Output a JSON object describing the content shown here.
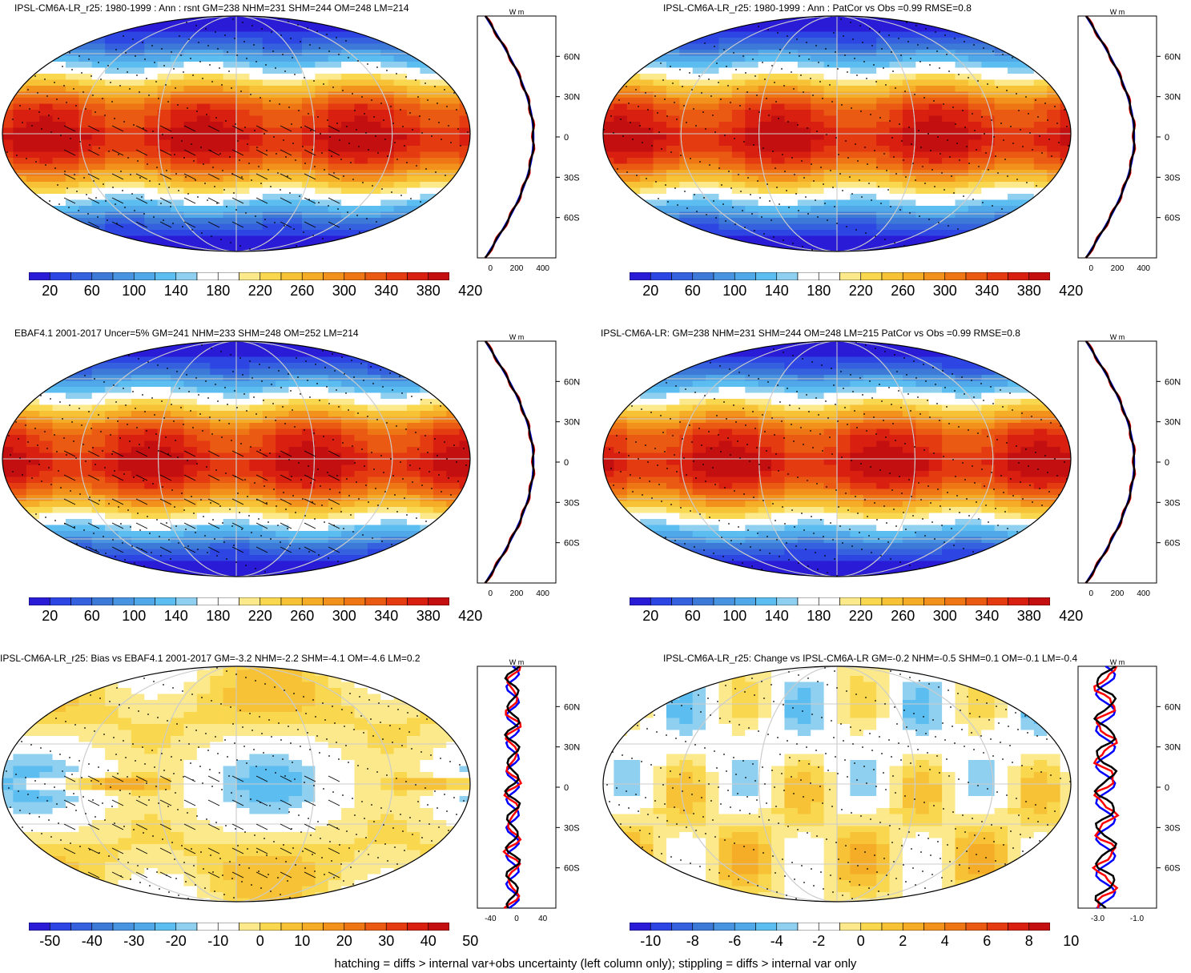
{
  "panels": [
    {
      "title": "IPSL-CM6A-LR_r25: 1980-1999 : Ann : rsnt GM=238 NHM=231 SHM=244 OM=248 LM=214",
      "kind": "abs",
      "hatch": true,
      "cb_labels": [
        "20",
        "60",
        "100",
        "140",
        "180",
        "220",
        "260",
        "300",
        "340",
        "380",
        "420"
      ],
      "prof_unit": "W m",
      "prof_x": [
        "0",
        "200",
        "400"
      ],
      "lat_labels": [
        "60N",
        "30N",
        "0",
        "30S",
        "60S"
      ]
    },
    {
      "title": "IPSL-CM6A-LR_r25: 1980-1999 : Ann : PatCor vs Obs =0.99 RMSE=0.8",
      "kind": "abs",
      "hatch": false,
      "cb_labels": [
        "20",
        "60",
        "100",
        "140",
        "180",
        "220",
        "260",
        "300",
        "340",
        "380",
        "420"
      ],
      "prof_unit": "W m",
      "prof_x": [
        "0",
        "200",
        "400"
      ],
      "lat_labels": [
        "60N",
        "30N",
        "0",
        "30S",
        "60S"
      ]
    },
    {
      "title": "EBAF4.1 2001-2017 Uncer=5% GM=241 NHM=233 SHM=248 OM=252 LM=214",
      "kind": "abs",
      "hatch": true,
      "cb_labels": [
        "20",
        "60",
        "100",
        "140",
        "180",
        "220",
        "260",
        "300",
        "340",
        "380",
        "420"
      ],
      "prof_unit": "W m",
      "prof_x": [
        "0",
        "200",
        "400"
      ],
      "lat_labels": [
        "60N",
        "30N",
        "0",
        "30S",
        "60S"
      ]
    },
    {
      "title": "IPSL-CM6A-LR: GM=238 NHM=231 SHM=244 OM=248 LM=215 PatCor vs Obs =0.99 RMSE=0.8",
      "kind": "abs",
      "hatch": false,
      "cb_labels": [
        "20",
        "60",
        "100",
        "140",
        "180",
        "220",
        "260",
        "300",
        "340",
        "380",
        "420"
      ],
      "prof_unit": "W m",
      "prof_x": [
        "0",
        "200",
        "400"
      ],
      "lat_labels": [
        "60N",
        "30N",
        "0",
        "30S",
        "60S"
      ]
    },
    {
      "title": "IPSL-CM6A-LR_r25: Bias vs EBAF4.1 2001-2017 GM=-3.2 NHM=-2.2 SHM=-4.1 OM=-4.6 LM=0.2",
      "kind": "bias",
      "hatch": true,
      "cb_labels": [
        "-50",
        "-40",
        "-30",
        "-20",
        "-10",
        "0",
        "10",
        "20",
        "30",
        "40",
        "50"
      ],
      "prof_unit": "W m",
      "prof_x": [
        "-40",
        "0",
        "40"
      ],
      "lat_labels": [
        "60N",
        "30N",
        "0",
        "30S",
        "60S"
      ]
    },
    {
      "title": "IPSL-CM6A-LR_r25: Change vs IPSL-CM6A-LR GM=-0.2 NHM=-0.5 SHM=0.1 OM=-0.1 LM=-0.4",
      "kind": "change",
      "hatch": false,
      "cb_labels": [
        "-10",
        "-8",
        "-6",
        "-4",
        "-2",
        "0",
        "2",
        "4",
        "6",
        "8",
        "10"
      ],
      "prof_unit": "W m",
      "prof_x": [
        "-3.0",
        "-1.0"
      ],
      "lat_labels": [
        "60N",
        "30N",
        "0",
        "30S",
        "60S"
      ]
    }
  ],
  "footer": "hatching = diffs > internal var+obs uncertainty (left column only); stippling = diffs > internal var only",
  "colors": {
    "palette": [
      "#2a1cd6",
      "#2c45e3",
      "#3561de",
      "#3d7ad8",
      "#4894e0",
      "#51a8e8",
      "#5cbdf0",
      "#8fd0f0",
      "#ffffff",
      "#ffffff",
      "#fbe98c",
      "#f9d74e",
      "#f7c236",
      "#f5ac26",
      "#f2921c",
      "#ef7615",
      "#eb5a12",
      "#e43c10",
      "#d81f10",
      "#c40f10"
    ],
    "obs_line": "#0000ff",
    "model_line": "#ff0000",
    "mean_line": "#000000"
  }
}
